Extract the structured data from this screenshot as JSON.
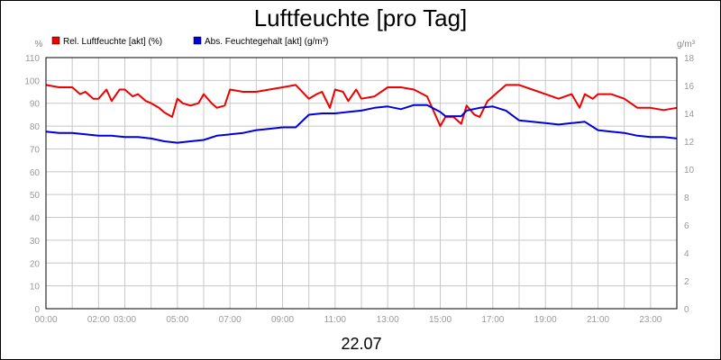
{
  "chart_data": {
    "type": "line",
    "title": "Luftfeuchte [pro Tag]",
    "date_label": "22.07",
    "y_left_unit": "%",
    "y_right_unit": "g/m³",
    "y_left_lim": [
      0,
      110
    ],
    "y_left_ticks": [
      "0",
      "10",
      "20",
      "30",
      "40",
      "50",
      "60",
      "70",
      "80",
      "90",
      "100",
      "110"
    ],
    "y_right_lim": [
      0,
      18
    ],
    "y_right_ticks": [
      "0",
      "2",
      "4",
      "6",
      "8",
      "10",
      "12",
      "14",
      "16",
      "18"
    ],
    "x_lim": [
      0,
      24
    ],
    "x_ticks": [
      {
        "x": 0,
        "label": "00:00"
      },
      {
        "x": 2,
        "label": "02:00"
      },
      {
        "x": 3,
        "label": "03:00"
      },
      {
        "x": 5,
        "label": "05:00"
      },
      {
        "x": 7,
        "label": "07:00"
      },
      {
        "x": 9,
        "label": "09:00"
      },
      {
        "x": 11,
        "label": "11:00"
      },
      {
        "x": 13,
        "label": "13:00"
      },
      {
        "x": 15,
        "label": "15:00"
      },
      {
        "x": 17,
        "label": "17:00"
      },
      {
        "x": 19,
        "label": "19:00"
      },
      {
        "x": 21,
        "label": "21:00"
      },
      {
        "x": 23,
        "label": "23:00"
      }
    ],
    "grid": true,
    "legend_position": "top-left",
    "x_unit": "hours",
    "series": [
      {
        "name": "Rel. Luftfeuchte [akt] (%)",
        "color": "#ee0000",
        "axis": "left",
        "x": [
          0,
          0.5,
          1,
          1.3,
          1.5,
          1.8,
          2,
          2.3,
          2.5,
          2.8,
          3,
          3.3,
          3.5,
          3.8,
          4,
          4.3,
          4.5,
          4.8,
          5,
          5.2,
          5.5,
          5.8,
          6,
          6.3,
          6.5,
          6.8,
          7,
          7.5,
          8,
          8.5,
          9,
          9.5,
          10,
          10.3,
          10.5,
          10.8,
          11,
          11.3,
          11.5,
          11.8,
          12,
          12.5,
          13,
          13.5,
          14,
          14.5,
          15,
          15.2,
          15.5,
          15.8,
          16,
          16.3,
          16.5,
          16.8,
          17,
          17.5,
          18,
          18.5,
          19,
          19.5,
          20,
          20.3,
          20.5,
          20.8,
          21,
          21.5,
          22,
          22.5,
          23,
          23.5,
          24
        ],
        "y": [
          98,
          97,
          97,
          94,
          95,
          92,
          92,
          96,
          91,
          96,
          96,
          93,
          94,
          91,
          90,
          88,
          86,
          84,
          92,
          90,
          89,
          90,
          94,
          90,
          88,
          89,
          96,
          95,
          95,
          96,
          97,
          98,
          92,
          94,
          95,
          88,
          96,
          95,
          91,
          96,
          92,
          93,
          97,
          97,
          96,
          93,
          80,
          84,
          84,
          81,
          89,
          85,
          84,
          91,
          93,
          98,
          98,
          96,
          94,
          92,
          94,
          88,
          94,
          92,
          94,
          94,
          92,
          88,
          88,
          87,
          88
        ]
      },
      {
        "name": "Abs. Feuchtegehalt [akt] (g/m³)",
        "color": "#0000dd",
        "axis": "right",
        "x": [
          0,
          0.5,
          1,
          1.5,
          2,
          2.5,
          3,
          3.5,
          4,
          4.5,
          5,
          5.5,
          6,
          6.5,
          7,
          7.5,
          8,
          8.5,
          9,
          9.5,
          10,
          10.5,
          11,
          11.5,
          12,
          12.5,
          13,
          13.5,
          14,
          14.5,
          15,
          15.2,
          15.5,
          15.8,
          16,
          16.5,
          17,
          17.5,
          18,
          18.5,
          19,
          19.5,
          20,
          20.5,
          21,
          21.5,
          22,
          22.5,
          23,
          23.5,
          24
        ],
        "y": [
          12.7,
          12.6,
          12.6,
          12.5,
          12.4,
          12.4,
          12.3,
          12.3,
          12.2,
          12.0,
          11.9,
          12.0,
          12.1,
          12.4,
          12.5,
          12.6,
          12.8,
          12.9,
          13.0,
          13.0,
          13.9,
          14.0,
          14.0,
          14.1,
          14.2,
          14.4,
          14.5,
          14.3,
          14.6,
          14.6,
          14.1,
          13.8,
          13.8,
          13.8,
          14.2,
          14.4,
          14.5,
          14.2,
          13.5,
          13.4,
          13.3,
          13.2,
          13.3,
          13.4,
          12.8,
          12.7,
          12.6,
          12.4,
          12.3,
          12.3,
          12.2
        ]
      }
    ]
  }
}
